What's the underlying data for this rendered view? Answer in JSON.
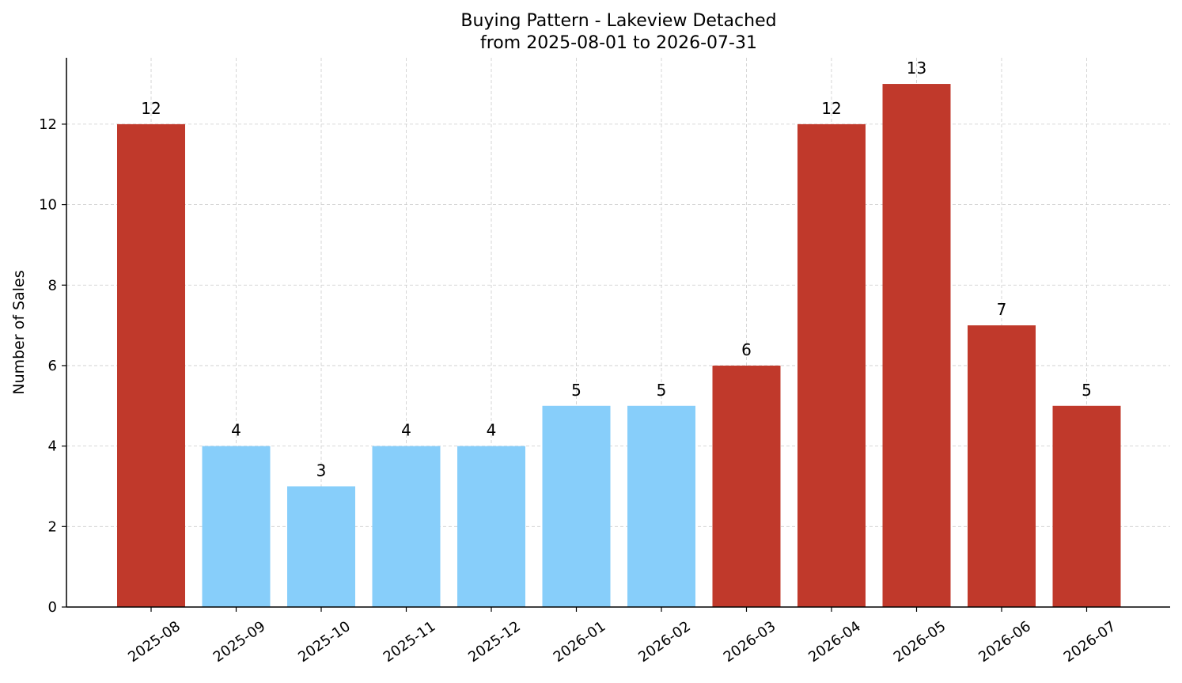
{
  "chart_data": {
    "type": "bar",
    "title": "Buying Pattern - Lakeview Detached",
    "subtitle": "from 2025-08-01 to 2026-07-31",
    "xlabel": "",
    "ylabel": "Number of Sales",
    "categories": [
      "2025-08",
      "2025-09",
      "2025-10",
      "2025-11",
      "2025-12",
      "2026-01",
      "2026-02",
      "2026-03",
      "2026-04",
      "2026-05",
      "2026-06",
      "2026-07"
    ],
    "values": [
      12,
      4,
      3,
      4,
      4,
      5,
      5,
      6,
      12,
      13,
      7,
      5
    ],
    "bar_colors": [
      "#c0392b",
      "#87cefa",
      "#87cefa",
      "#87cefa",
      "#87cefa",
      "#87cefa",
      "#87cefa",
      "#c0392b",
      "#c0392b",
      "#c0392b",
      "#c0392b",
      "#c0392b"
    ],
    "yticks": [
      0,
      2,
      4,
      6,
      8,
      10,
      12
    ],
    "ylim": [
      0,
      13.65
    ],
    "grid": true,
    "legend": "none"
  }
}
